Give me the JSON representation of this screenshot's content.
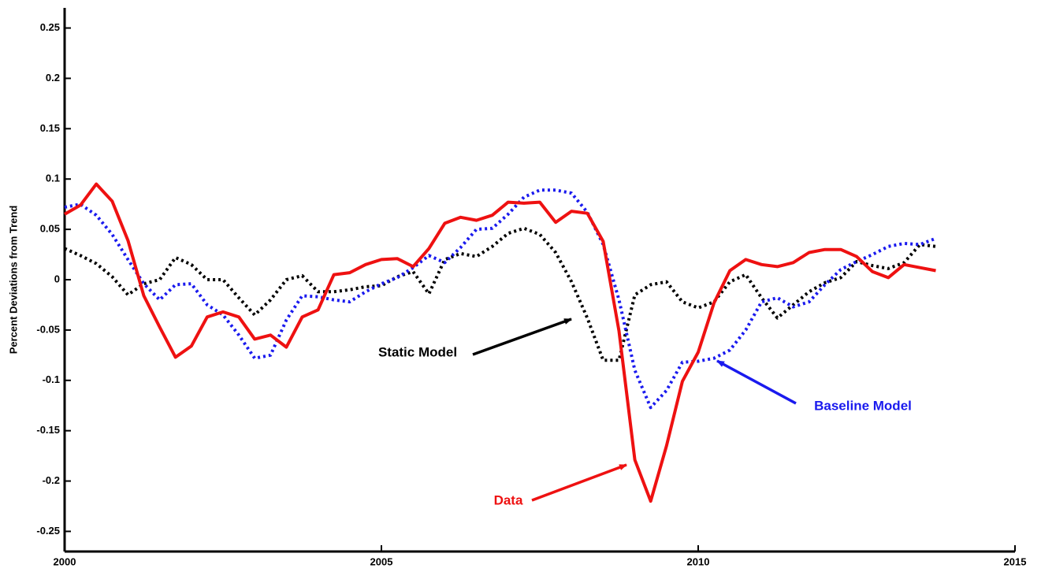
{
  "chart_data": {
    "type": "line",
    "y_label": "Percent Deviations from Trend",
    "x": [
      2000,
      2000.25,
      2000.5,
      2000.75,
      2001,
      2001.25,
      2001.5,
      2001.75,
      2002,
      2002.25,
      2002.5,
      2002.75,
      2003,
      2003.25,
      2003.5,
      2003.75,
      2004,
      2004.25,
      2004.5,
      2004.75,
      2005,
      2005.25,
      2005.5,
      2005.75,
      2006,
      2006.25,
      2006.5,
      2006.75,
      2007,
      2007.25,
      2007.5,
      2007.75,
      2008,
      2008.25,
      2008.5,
      2008.75,
      2009,
      2009.25,
      2009.5,
      2009.75,
      2010,
      2010.25,
      2010.5,
      2010.75,
      2011,
      2011.25,
      2011.5,
      2011.75,
      2012,
      2012.25,
      2012.5,
      2012.75,
      2013,
      2013.25,
      2013.5,
      2013.75
    ],
    "series": [
      {
        "name": "Data",
        "color": "#ee1111",
        "style": "solid",
        "values": [
          0.065,
          0.074,
          0.095,
          0.078,
          0.039,
          -0.016,
          -0.047,
          -0.077,
          -0.066,
          -0.037,
          -0.032,
          -0.037,
          -0.059,
          -0.055,
          -0.067,
          -0.037,
          -0.03,
          0.005,
          0.007,
          0.015,
          0.02,
          0.021,
          0.013,
          0.031,
          0.056,
          0.062,
          0.059,
          0.064,
          0.077,
          0.076,
          0.077,
          0.057,
          0.068,
          0.066,
          0.038,
          -0.051,
          -0.179,
          -0.22,
          -0.165,
          -0.101,
          -0.072,
          -0.023,
          0.009,
          0.02,
          0.015,
          0.013,
          0.017,
          0.027,
          0.03,
          0.03,
          0.023,
          0.008,
          0.002,
          0.015,
          0.012,
          0.009
        ]
      },
      {
        "name": "Baseline Model",
        "color": "#1a1aee",
        "style": "dotted",
        "values": [
          0.072,
          0.075,
          0.064,
          0.045,
          0.02,
          -0.004,
          -0.02,
          -0.005,
          -0.004,
          -0.025,
          -0.035,
          -0.055,
          -0.078,
          -0.075,
          -0.04,
          -0.016,
          -0.017,
          -0.02,
          -0.022,
          -0.012,
          -0.004,
          0.002,
          0.012,
          0.024,
          0.017,
          0.032,
          0.05,
          0.051,
          0.065,
          0.082,
          0.089,
          0.089,
          0.086,
          0.067,
          0.035,
          -0.02,
          -0.09,
          -0.127,
          -0.11,
          -0.082,
          -0.081,
          -0.078,
          -0.07,
          -0.05,
          -0.022,
          -0.018,
          -0.027,
          -0.022,
          -0.005,
          0.01,
          0.018,
          0.025,
          0.033,
          0.036,
          0.035,
          0.041
        ]
      },
      {
        "name": "Static Model",
        "color": "#000000",
        "style": "dotted",
        "values": [
          0.031,
          0.024,
          0.016,
          0.003,
          -0.015,
          -0.004,
          0,
          0.022,
          0.015,
          0,
          0,
          -0.018,
          -0.035,
          -0.02,
          0,
          0.004,
          -0.012,
          -0.012,
          -0.01,
          -0.007,
          -0.006,
          0.003,
          0.008,
          -0.014,
          0.02,
          0.026,
          0.023,
          0.033,
          0.046,
          0.051,
          0.045,
          0.027,
          -0.002,
          -0.038,
          -0.08,
          -0.08,
          -0.015,
          -0.005,
          -0.002,
          -0.022,
          -0.028,
          -0.022,
          -0.002,
          0.005,
          -0.018,
          -0.038,
          -0.025,
          -0.012,
          -0.003,
          0.002,
          0.018,
          0.014,
          0.011,
          0.017,
          0.035,
          0.033
        ]
      }
    ],
    "xlim": [
      2000,
      2015
    ],
    "xticks": [
      2000,
      2005,
      2010,
      2015
    ],
    "ylim": [
      -0.27,
      0.27
    ],
    "yticks": [
      -0.25,
      -0.2,
      -0.15,
      -0.1,
      -0.05,
      0,
      0.05,
      0.1,
      0.15,
      0.2,
      0.25
    ],
    "grid": false
  }
}
